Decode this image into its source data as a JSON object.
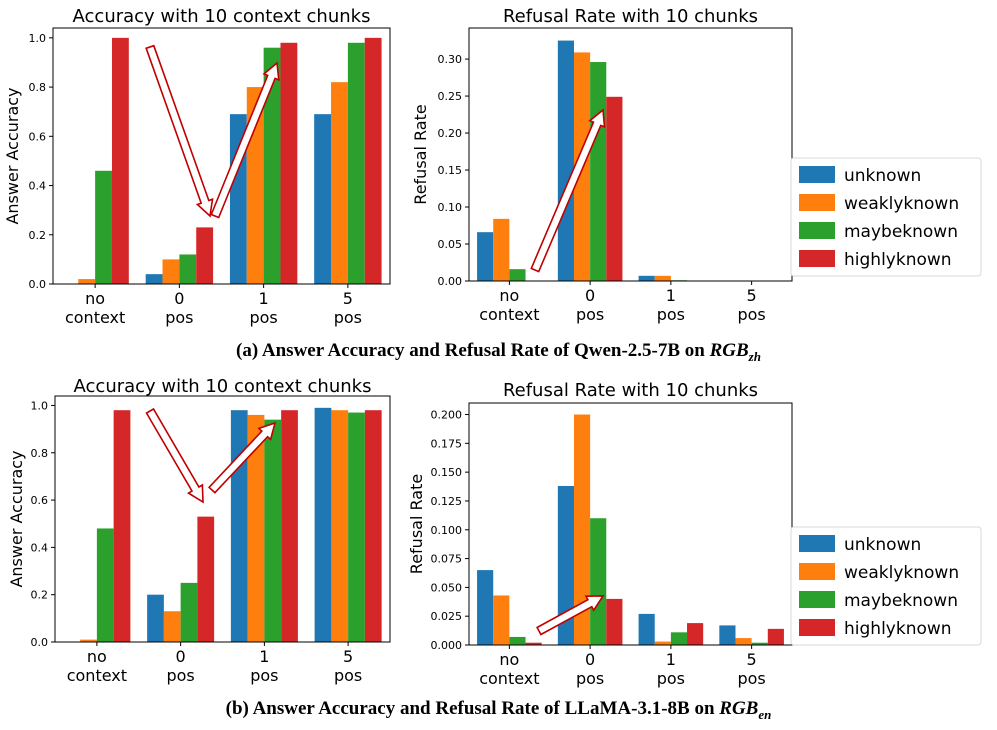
{
  "colors": {
    "unknown": "#1f77b4",
    "weaklyknown": "#ff7f0e",
    "maybeknown": "#2ca02c",
    "highlyknown": "#d62728",
    "arrow": "#c00000"
  },
  "legend_entries": [
    "unknown",
    "weaklyknown",
    "maybeknown",
    "highlyknown"
  ],
  "captions": {
    "a_text": "(a) Answer Accuracy and Refusal Rate of Qwen-2.5-7B on ",
    "a_symbol": "RGB",
    "a_sub": "zh",
    "b_text": "(b) Answer Accuracy and Refusal Rate of LLaMA-3.1-8B on ",
    "b_symbol": "RGB",
    "b_sub": "en"
  },
  "chart_data": [
    {
      "id": "qwen-accuracy",
      "type": "bar",
      "title": "Accuracy with 10 context chunks",
      "xlabel": "",
      "ylabel": "Answer Accuracy",
      "categories": [
        [
          "no",
          "context"
        ],
        [
          "0",
          "pos"
        ],
        [
          "1",
          "pos"
        ],
        [
          "5",
          "pos"
        ]
      ],
      "ylim": [
        0,
        1.04
      ],
      "yticks": [
        0.0,
        0.2,
        0.4,
        0.6,
        0.8,
        1.0
      ],
      "ytick_labels": [
        "0.0",
        "0.2",
        "0.4",
        "0.6",
        "0.8",
        "1.0"
      ],
      "series": [
        {
          "name": "unknown",
          "values": [
            0.0,
            0.04,
            0.69,
            0.69
          ]
        },
        {
          "name": "weaklyknown",
          "values": [
            0.02,
            0.1,
            0.8,
            0.82
          ]
        },
        {
          "name": "maybeknown",
          "values": [
            0.46,
            0.12,
            0.96,
            0.98
          ]
        },
        {
          "name": "highlyknown",
          "values": [
            1.0,
            0.23,
            0.98,
            1.0
          ]
        }
      ]
    },
    {
      "id": "qwen-refusal",
      "type": "bar",
      "title": "Refusal Rate with 10 chunks",
      "xlabel": "",
      "ylabel": "Refusal Rate",
      "categories": [
        [
          "no",
          "context"
        ],
        [
          "0",
          "pos"
        ],
        [
          "1",
          "pos"
        ],
        [
          "5",
          "pos"
        ]
      ],
      "ylim": [
        0,
        0.342
      ],
      "yticks": [
        0.0,
        0.05,
        0.1,
        0.15,
        0.2,
        0.25,
        0.3
      ],
      "ytick_labels": [
        "0.00",
        "0.05",
        "0.10",
        "0.15",
        "0.20",
        "0.25",
        "0.30"
      ],
      "series": [
        {
          "name": "unknown",
          "values": [
            0.066,
            0.325,
            0.007,
            0.0
          ]
        },
        {
          "name": "weaklyknown",
          "values": [
            0.084,
            0.309,
            0.007,
            0.0
          ]
        },
        {
          "name": "maybeknown",
          "values": [
            0.016,
            0.296,
            0.001,
            0.0
          ]
        },
        {
          "name": "highlyknown",
          "values": [
            0.0,
            0.249,
            0.0,
            0.0
          ]
        }
      ]
    },
    {
      "id": "llama-accuracy",
      "type": "bar",
      "title": "Accuracy with 10 context chunks",
      "xlabel": "",
      "ylabel": "Answer Accuracy",
      "categories": [
        [
          "no",
          "context"
        ],
        [
          "0",
          "pos"
        ],
        [
          "1",
          "pos"
        ],
        [
          "5",
          "pos"
        ]
      ],
      "ylim": [
        0,
        1.04
      ],
      "yticks": [
        0.0,
        0.2,
        0.4,
        0.6,
        0.8,
        1.0
      ],
      "ytick_labels": [
        "0.0",
        "0.2",
        "0.4",
        "0.6",
        "0.8",
        "1.0"
      ],
      "series": [
        {
          "name": "unknown",
          "values": [
            0.0,
            0.2,
            0.98,
            0.99
          ]
        },
        {
          "name": "weaklyknown",
          "values": [
            0.01,
            0.13,
            0.96,
            0.98
          ]
        },
        {
          "name": "maybeknown",
          "values": [
            0.48,
            0.25,
            0.94,
            0.97
          ]
        },
        {
          "name": "highlyknown",
          "values": [
            0.98,
            0.53,
            0.98,
            0.98
          ]
        }
      ]
    },
    {
      "id": "llama-refusal",
      "type": "bar",
      "title": "Refusal Rate with 10 chunks",
      "xlabel": "",
      "ylabel": "Refusal Rate",
      "categories": [
        [
          "no",
          "context"
        ],
        [
          "0",
          "pos"
        ],
        [
          "1",
          "pos"
        ],
        [
          "5",
          "pos"
        ]
      ],
      "ylim": [
        0,
        0.21
      ],
      "yticks": [
        0.0,
        0.025,
        0.05,
        0.075,
        0.1,
        0.125,
        0.15,
        0.175,
        0.2
      ],
      "ytick_labels": [
        "0.000",
        "0.025",
        "0.050",
        "0.075",
        "0.100",
        "0.125",
        "0.150",
        "0.175",
        "0.200"
      ],
      "series": [
        {
          "name": "unknown",
          "values": [
            0.065,
            0.138,
            0.027,
            0.017
          ]
        },
        {
          "name": "weaklyknown",
          "values": [
            0.043,
            0.2,
            0.003,
            0.006
          ]
        },
        {
          "name": "maybeknown",
          "values": [
            0.007,
            0.11,
            0.011,
            0.002
          ]
        },
        {
          "name": "highlyknown",
          "values": [
            0.002,
            0.04,
            0.019,
            0.014
          ]
        }
      ]
    }
  ]
}
